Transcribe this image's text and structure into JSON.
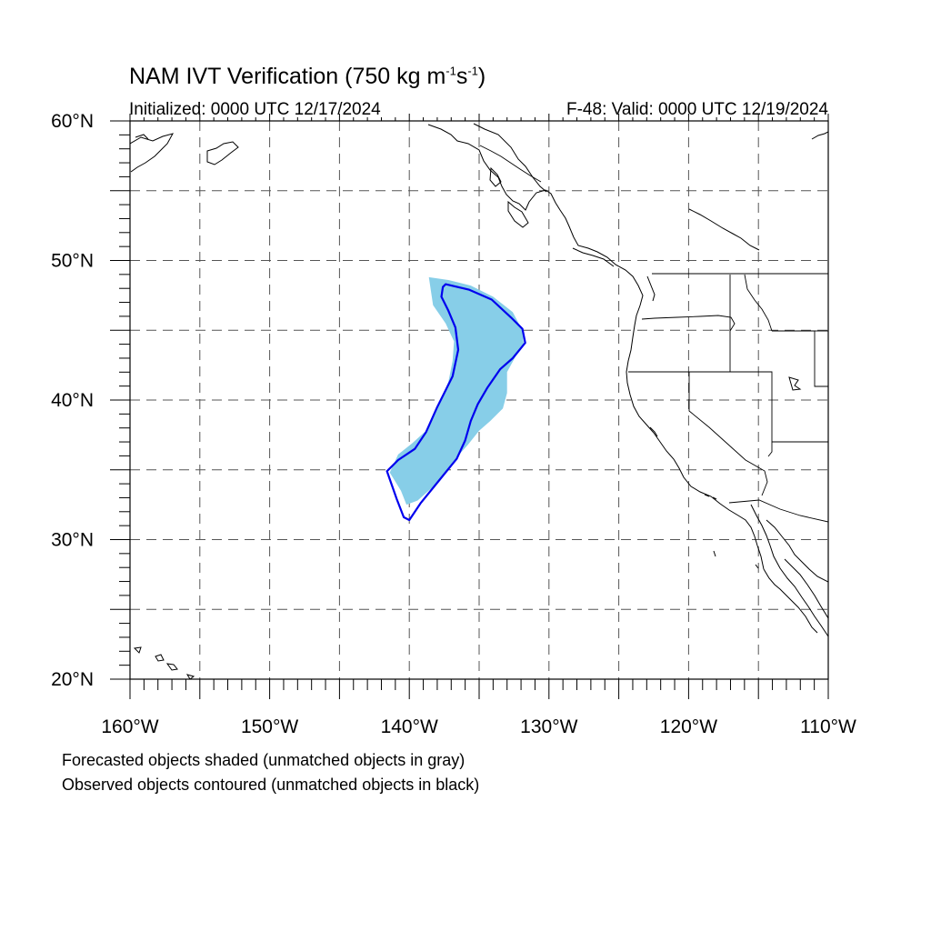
{
  "title": {
    "prefix": "NAM IVT Verification (750 kg m",
    "exp1": "-1",
    "mid": "s",
    "exp2": "-1",
    "suffix": ")"
  },
  "initialized": "Initialized: 0000 UTC 12/17/2024",
  "valid": "F-48: Valid: 0000 UTC 12/19/2024",
  "caption": {
    "line1": "Forecasted objects shaded (unmatched objects in gray)",
    "line2": "Observed objects contoured (unmatched objects in black)"
  },
  "map": {
    "projection": "cylindrical equidistant",
    "lon_range": [
      -160,
      -110
    ],
    "lat_range": [
      20,
      60
    ],
    "gridline_interval_deg": 5,
    "lat_labels": [
      "60°N",
      "50°N",
      "40°N",
      "30°N",
      "20°N"
    ],
    "lon_labels": [
      "160°W",
      "150°W",
      "140°W",
      "130°W",
      "120°W",
      "110°W"
    ],
    "colors": {
      "forecast_fill": "#87CEE8",
      "observed_contour": "#0000EE",
      "coastline": "#000000",
      "grid": "#555555"
    },
    "forecast_object": {
      "label": "Forecasted object (shaded)",
      "outline_lonlat": [
        [
          -138.6,
          48.8
        ],
        [
          -137.2,
          48.6
        ],
        [
          -135.6,
          48.2
        ],
        [
          -134.0,
          47.4
        ],
        [
          -132.6,
          46.3
        ],
        [
          -131.9,
          45.0
        ],
        [
          -131.8,
          43.9
        ],
        [
          -132.4,
          43.1
        ],
        [
          -133.0,
          42.0
        ],
        [
          -133.0,
          40.5
        ],
        [
          -133.3,
          39.4
        ],
        [
          -134.2,
          38.5
        ],
        [
          -135.0,
          37.8
        ],
        [
          -135.8,
          36.8
        ],
        [
          -136.7,
          35.8
        ],
        [
          -137.6,
          34.6
        ],
        [
          -138.4,
          33.7
        ],
        [
          -139.4,
          32.8
        ],
        [
          -140.2,
          32.5
        ],
        [
          -140.6,
          33.5
        ],
        [
          -141.4,
          34.8
        ],
        [
          -140.8,
          36.1
        ],
        [
          -139.8,
          36.9
        ],
        [
          -138.8,
          37.8
        ],
        [
          -138.0,
          39.4
        ],
        [
          -137.2,
          41.3
        ],
        [
          -136.9,
          42.8
        ],
        [
          -136.8,
          44.2
        ],
        [
          -137.4,
          45.5
        ],
        [
          -138.3,
          46.8
        ]
      ]
    },
    "observed_object": {
      "label": "Observed object (contoured)",
      "outline_lonlat": [
        [
          -137.4,
          48.3
        ],
        [
          -135.7,
          47.9
        ],
        [
          -134.1,
          47.2
        ],
        [
          -132.7,
          45.9
        ],
        [
          -131.9,
          45.1
        ],
        [
          -131.7,
          44.1
        ],
        [
          -132.6,
          43.0
        ],
        [
          -133.5,
          42.2
        ],
        [
          -134.4,
          40.9
        ],
        [
          -135.1,
          39.7
        ],
        [
          -135.6,
          38.5
        ],
        [
          -136.0,
          37.1
        ],
        [
          -136.6,
          35.8
        ],
        [
          -137.9,
          34.2
        ],
        [
          -139.2,
          32.6
        ],
        [
          -140.0,
          31.4
        ],
        [
          -140.4,
          31.6
        ],
        [
          -140.9,
          32.9
        ],
        [
          -141.6,
          34.9
        ],
        [
          -140.8,
          35.7
        ],
        [
          -139.6,
          36.5
        ],
        [
          -138.8,
          37.7
        ],
        [
          -138.0,
          39.5
        ],
        [
          -136.9,
          41.7
        ],
        [
          -136.5,
          43.6
        ],
        [
          -136.7,
          45.2
        ],
        [
          -137.2,
          46.4
        ],
        [
          -137.7,
          47.4
        ],
        [
          -137.6,
          48.1
        ]
      ]
    }
  }
}
